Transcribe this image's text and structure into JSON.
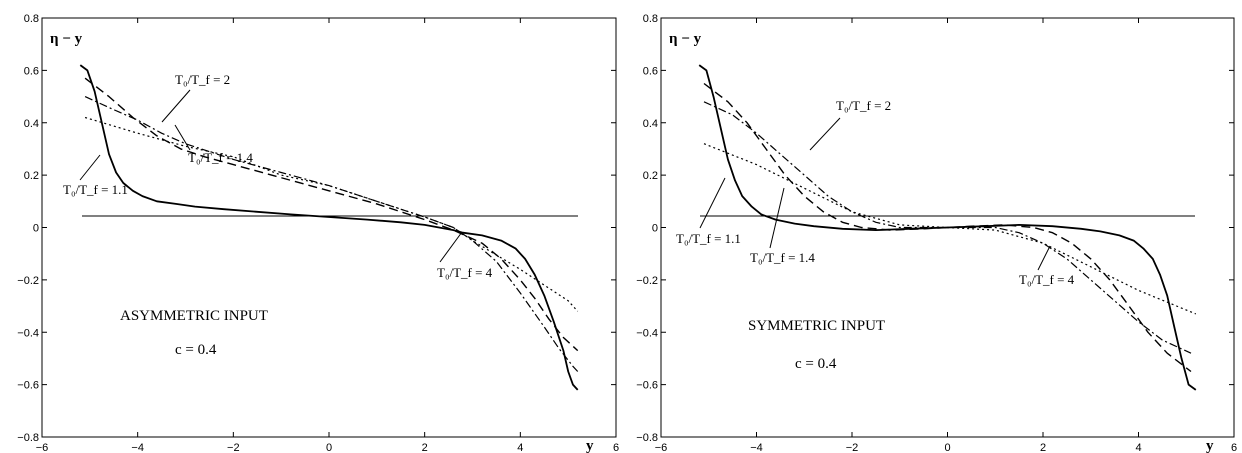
{
  "chart_data": [
    {
      "type": "line",
      "panel": "left",
      "xlabel": "y",
      "ylabel": "η − y",
      "xlim": [
        -6,
        6
      ],
      "ylim": [
        -0.8,
        0.8
      ],
      "x_ticks": [
        -6,
        -4,
        -2,
        0,
        2,
        4,
        6
      ],
      "y_ticks": [
        -0.8,
        -0.6,
        -0.4,
        -0.2,
        0,
        0.2,
        0.4,
        0.6,
        0.8
      ],
      "x_tick_labels": [
        "−6",
        "−4",
        "−2",
        "0",
        "2",
        "4",
        "6"
      ],
      "y_tick_labels": [
        "−0.8",
        "−0.6",
        "−0.4",
        "−0.2",
        "0",
        "0.2",
        "0.4",
        "0.6",
        "0.8"
      ],
      "grid": false,
      "annotations": {
        "a11": "T₀/T_f = 1.1",
        "a14": "T₀/T_f = 1.4",
        "a2": "T₀/T_f = 2",
        "a4": "T₀/T_f = 4",
        "input": "ASYMMETRIC INPUT",
        "c": "c = 0.4"
      },
      "series": [
        {
          "style": "solid",
          "x": [
            -5.2,
            -5.05,
            -4.9,
            -4.75,
            -4.6,
            -4.45,
            -4.3,
            -4.1,
            -3.9,
            -3.6,
            -3.2,
            -2.8,
            -2.2,
            -1.5,
            -0.8,
            0,
            0.8,
            1.5,
            2.0,
            2.3,
            2.6,
            2.8,
            3.2,
            3.6,
            3.9,
            4.1,
            4.3,
            4.5,
            4.7,
            4.9,
            5.0,
            5.1,
            5.2
          ],
          "y": [
            0.62,
            0.6,
            0.52,
            0.4,
            0.28,
            0.21,
            0.17,
            0.14,
            0.12,
            0.1,
            0.09,
            0.08,
            0.07,
            0.06,
            0.05,
            0.04,
            0.03,
            0.02,
            0.01,
            0.0,
            -0.01,
            -0.02,
            -0.03,
            -0.05,
            -0.08,
            -0.12,
            -0.18,
            -0.26,
            -0.36,
            -0.47,
            -0.55,
            -0.6,
            -0.62
          ]
        },
        {
          "style": "dashed",
          "x": [
            -5.1,
            -4.6,
            -4.1,
            -3.6,
            -3.1,
            -2.6,
            -2.0,
            -1.0,
            0,
            1.0,
            2.0,
            2.6,
            3.2,
            3.6,
            4.0,
            4.3,
            4.6,
            4.9,
            5.2
          ],
          "y": [
            0.57,
            0.5,
            0.42,
            0.35,
            0.3,
            0.27,
            0.24,
            0.19,
            0.14,
            0.09,
            0.03,
            -0.01,
            -0.06,
            -0.12,
            -0.2,
            -0.27,
            -0.35,
            -0.42,
            -0.47
          ]
        },
        {
          "style": "dashdot",
          "x": [
            -5.1,
            -4.5,
            -4.0,
            -3.5,
            -3.0,
            -2.5,
            -2.0,
            -1.0,
            0,
            1.0,
            2.0,
            2.6,
            3.0,
            3.5,
            4.0,
            4.5,
            4.8,
            5.1,
            5.2
          ],
          "y": [
            0.5,
            0.45,
            0.41,
            0.36,
            0.32,
            0.29,
            0.26,
            0.21,
            0.16,
            0.1,
            0.04,
            0.0,
            -0.05,
            -0.13,
            -0.25,
            -0.38,
            -0.46,
            -0.53,
            -0.55
          ]
        },
        {
          "style": "dotted",
          "x": [
            -5.1,
            -4.0,
            -3.0,
            -2.0,
            -1.0,
            0,
            1.0,
            2.0,
            2.6,
            3.0,
            4.0,
            5.0,
            5.2
          ],
          "y": [
            0.42,
            0.36,
            0.31,
            0.27,
            0.2,
            0.16,
            0.1,
            0.04,
            0.0,
            -0.05,
            -0.16,
            -0.28,
            -0.32
          ]
        }
      ]
    },
    {
      "type": "line",
      "panel": "right",
      "xlabel": "y",
      "ylabel": "η − y",
      "xlim": [
        -6,
        6
      ],
      "ylim": [
        -0.8,
        0.8
      ],
      "x_ticks": [
        -6,
        -4,
        -2,
        0,
        2,
        4,
        6
      ],
      "y_ticks": [
        -0.8,
        -0.6,
        -0.4,
        -0.2,
        0,
        0.2,
        0.4,
        0.6,
        0.8
      ],
      "x_tick_labels": [
        "−6",
        "−4",
        "−2",
        "0",
        "2",
        "4",
        "6"
      ],
      "y_tick_labels": [
        "−0.8",
        "−0.6",
        "−0.4",
        "−0.2",
        "0",
        "0.2",
        "0.4",
        "0.6",
        "0.8"
      ],
      "grid": false,
      "annotations": {
        "a11": "T₀/T_f = 1.1",
        "a14": "T₀/T_f = 1.4",
        "a2": "T₀/T_f = 2",
        "a4": "T₀/T_f = 4",
        "input": "SYMMETRIC INPUT",
        "c": "c = 0.4"
      },
      "series": [
        {
          "style": "solid",
          "x": [
            -5.2,
            -5.05,
            -4.9,
            -4.75,
            -4.6,
            -4.45,
            -4.3,
            -4.1,
            -3.9,
            -3.6,
            -3.2,
            -2.8,
            -2.2,
            -1.5,
            -0.8,
            0,
            0.8,
            1.5,
            2.2,
            2.8,
            3.2,
            3.6,
            3.9,
            4.1,
            4.3,
            4.45,
            4.6,
            4.75,
            4.9,
            5.05,
            5.2
          ],
          "y": [
            0.62,
            0.6,
            0.5,
            0.38,
            0.26,
            0.18,
            0.12,
            0.08,
            0.05,
            0.03,
            0.015,
            0.005,
            -0.005,
            -0.01,
            -0.005,
            0.0,
            0.005,
            0.01,
            0.005,
            -0.005,
            -0.015,
            -0.03,
            -0.05,
            -0.08,
            -0.12,
            -0.18,
            -0.26,
            -0.38,
            -0.5,
            -0.6,
            -0.62
          ]
        },
        {
          "style": "dashed",
          "x": [
            -5.1,
            -4.6,
            -4.2,
            -3.8,
            -3.4,
            -3.0,
            -2.6,
            -2.2,
            -1.8,
            -1.2,
            -0.5,
            0,
            0.5,
            1.2,
            1.8,
            2.2,
            2.6,
            3.0,
            3.4,
            3.8,
            4.2,
            4.6,
            5.1
          ],
          "y": [
            0.55,
            0.48,
            0.4,
            0.3,
            0.2,
            0.12,
            0.06,
            0.02,
            0.0,
            -0.01,
            -0.005,
            0.0,
            0.005,
            0.01,
            0.0,
            -0.02,
            -0.06,
            -0.12,
            -0.2,
            -0.3,
            -0.4,
            -0.48,
            -0.55
          ]
        },
        {
          "style": "dashdot",
          "x": [
            -5.1,
            -4.5,
            -4.0,
            -3.5,
            -3.0,
            -2.5,
            -2.0,
            -1.5,
            -1.0,
            0,
            1.0,
            1.5,
            2.0,
            2.5,
            3.0,
            3.5,
            4.0,
            4.5,
            5.1
          ],
          "y": [
            0.48,
            0.43,
            0.36,
            0.28,
            0.2,
            0.12,
            0.06,
            0.02,
            0.0,
            0.0,
            0.0,
            -0.02,
            -0.06,
            -0.12,
            -0.2,
            -0.28,
            -0.36,
            -0.43,
            -0.48
          ]
        },
        {
          "style": "dotted",
          "x": [
            -5.1,
            -4.0,
            -3.0,
            -2.0,
            -1.0,
            0,
            1.0,
            2.0,
            3.0,
            4.0,
            5.2
          ],
          "y": [
            0.32,
            0.24,
            0.15,
            0.06,
            0.01,
            0.0,
            -0.01,
            -0.06,
            -0.15,
            -0.24,
            -0.33
          ]
        }
      ]
    }
  ]
}
